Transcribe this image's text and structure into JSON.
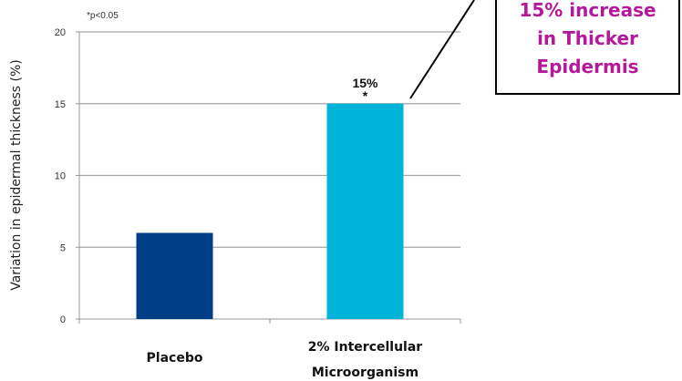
{
  "chart_data": {
    "type": "bar",
    "categories": [
      [
        "Placebo"
      ],
      [
        "2% Intercellular",
        "Microorganism"
      ]
    ],
    "values": [
      6,
      15
    ],
    "colors": [
      "#003f87",
      "#00b3d9"
    ],
    "ylabel": "Variation in epidermal thickness (%)",
    "ylim": [
      0,
      20
    ],
    "yticks": [
      0,
      5,
      10,
      15,
      20
    ],
    "grid": true,
    "footnote": "*p<0.05",
    "data_labels": [
      {
        "bar_index": 1,
        "text": "15%",
        "marker": "*"
      }
    ]
  },
  "callout": {
    "lines": [
      "15% increase",
      "in Thicker",
      "Epidermis"
    ],
    "color": "#b5189a"
  }
}
